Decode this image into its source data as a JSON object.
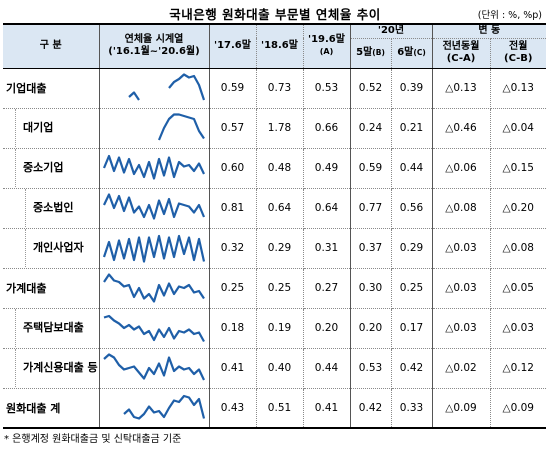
{
  "title": "국내은행 원화대출 부문별 연체율 추이",
  "unit": "(단위 : %, %p)",
  "header": {
    "category": "구  분",
    "series_title_line1": "연체율 시계열",
    "series_title_line2": "('16.1월~'20.6월)",
    "col_176": "'17.6말",
    "col_186": "'18.6말",
    "col_196_line1": "'19.6말",
    "col_196_line2": "(A)",
    "year20": "'20년",
    "col_may_main": "5말",
    "col_may_sub": "(B)",
    "col_jun_main": "6말",
    "col_jun_sub": "(C)",
    "change": "변 동",
    "yoy_line1": "전년동월",
    "yoy_line2": "(C-A)",
    "mom_line1": "전월",
    "mom_line2": "(C-B)"
  },
  "rows": [
    {
      "name": "기업대출",
      "level": 0,
      "v176": "0.59",
      "v186": "0.73",
      "v196": "0.53",
      "v205": "0.52",
      "v206": "0.39",
      "yoy": "△0.13",
      "mom": "△0.13",
      "spark": [
        null,
        null,
        null,
        null,
        null,
        0.2,
        0.35,
        0.1,
        null,
        null,
        null,
        null,
        null,
        0.5,
        0.7,
        0.8,
        0.95,
        0.85,
        0.9,
        0.6,
        0.1
      ]
    },
    {
      "name": "대기업",
      "level": 1,
      "v176": "0.57",
      "v186": "1.78",
      "v196": "0.66",
      "v205": "0.24",
      "v206": "0.21",
      "yoy": "△0.46",
      "mom": "△0.04",
      "spark": [
        null,
        null,
        null,
        null,
        null,
        null,
        null,
        null,
        null,
        null,
        null,
        0.1,
        0.5,
        0.8,
        0.95,
        0.95,
        0.9,
        0.85,
        0.8,
        0.4,
        0.15
      ]
    },
    {
      "name": "중소기업",
      "level": 1,
      "v176": "0.60",
      "v186": "0.48",
      "v196": "0.49",
      "v205": "0.59",
      "v206": "0.44",
      "yoy": "△0.06",
      "mom": "△0.15",
      "spark": [
        0.5,
        0.9,
        0.4,
        0.85,
        0.35,
        0.8,
        0.3,
        0.6,
        0.2,
        0.7,
        0.15,
        0.8,
        0.25,
        0.85,
        0.2,
        0.7,
        0.55,
        0.6,
        0.4,
        0.65,
        0.3
      ]
    },
    {
      "name": "중소법인",
      "level": 2,
      "v176": "0.81",
      "v186": "0.64",
      "v196": "0.64",
      "v205": "0.77",
      "v206": "0.56",
      "yoy": "△0.08",
      "mom": "△0.20",
      "spark": [
        0.6,
        0.95,
        0.5,
        0.9,
        0.4,
        0.85,
        0.35,
        0.55,
        0.2,
        0.6,
        0.15,
        0.75,
        0.3,
        0.8,
        0.2,
        0.65,
        0.6,
        0.55,
        0.35,
        0.6,
        0.2
      ]
    },
    {
      "name": "개인사업자",
      "level": 2,
      "v176": "0.32",
      "v186": "0.29",
      "v196": "0.31",
      "v205": "0.37",
      "v206": "0.29",
      "yoy": "△0.03",
      "mom": "△0.08",
      "spark": [
        0.2,
        0.7,
        0.1,
        0.75,
        0.15,
        0.8,
        0.1,
        0.85,
        0.05,
        0.85,
        0.2,
        0.9,
        0.15,
        0.85,
        0.2,
        0.9,
        0.3,
        0.85,
        0.1,
        0.8,
        0.05
      ]
    },
    {
      "name": "가계대출",
      "level": 0,
      "v176": "0.25",
      "v186": "0.25",
      "v196": "0.27",
      "v205": "0.30",
      "v206": "0.25",
      "yoy": "△0.03",
      "mom": "△0.05",
      "spark": [
        0.7,
        0.95,
        0.75,
        0.7,
        0.55,
        0.6,
        0.2,
        0.5,
        0.15,
        0.3,
        0.05,
        0.6,
        0.25,
        0.65,
        0.3,
        0.55,
        0.5,
        0.6,
        0.35,
        0.4,
        0.15
      ]
    },
    {
      "name": "주택담보대출",
      "level": 1,
      "v176": "0.18",
      "v186": "0.19",
      "v196": "0.20",
      "v205": "0.20",
      "v206": "0.17",
      "yoy": "△0.03",
      "mom": "△0.03",
      "spark": [
        0.85,
        0.9,
        0.75,
        0.65,
        0.5,
        0.6,
        0.45,
        0.55,
        0.3,
        0.4,
        0.1,
        0.45,
        0.2,
        0.5,
        0.15,
        0.4,
        0.35,
        0.45,
        0.3,
        0.35,
        0.05
      ]
    },
    {
      "name": "가계신용대출 등",
      "level": 1,
      "v176": "0.41",
      "v186": "0.40",
      "v196": "0.44",
      "v205": "0.53",
      "v206": "0.42",
      "yoy": "△0.02",
      "mom": "△0.12",
      "spark": [
        0.8,
        0.95,
        0.85,
        0.6,
        0.45,
        0.5,
        0.55,
        0.35,
        0.15,
        0.5,
        0.3,
        0.65,
        0.25,
        0.85,
        0.4,
        0.55,
        0.45,
        0.5,
        0.3,
        0.45,
        0.1
      ]
    },
    {
      "name": "원화대출 계",
      "level": 0,
      "v176": "0.43",
      "v186": "0.51",
      "v196": "0.41",
      "v205": "0.42",
      "v206": "0.33",
      "yoy": "△0.09",
      "mom": "△0.09",
      "spark": [
        null,
        null,
        null,
        null,
        0.3,
        0.45,
        0.2,
        0.15,
        0.3,
        0.55,
        0.35,
        0.4,
        0.2,
        0.5,
        0.75,
        0.7,
        0.9,
        0.85,
        0.6,
        0.8,
        0.15
      ]
    }
  ],
  "footnote": "* 은행계정 원화대출금 및 신탁대출금 기준",
  "colors": {
    "header_bg": "#dbe7f3",
    "spark_line": "#1f5fa8"
  }
}
